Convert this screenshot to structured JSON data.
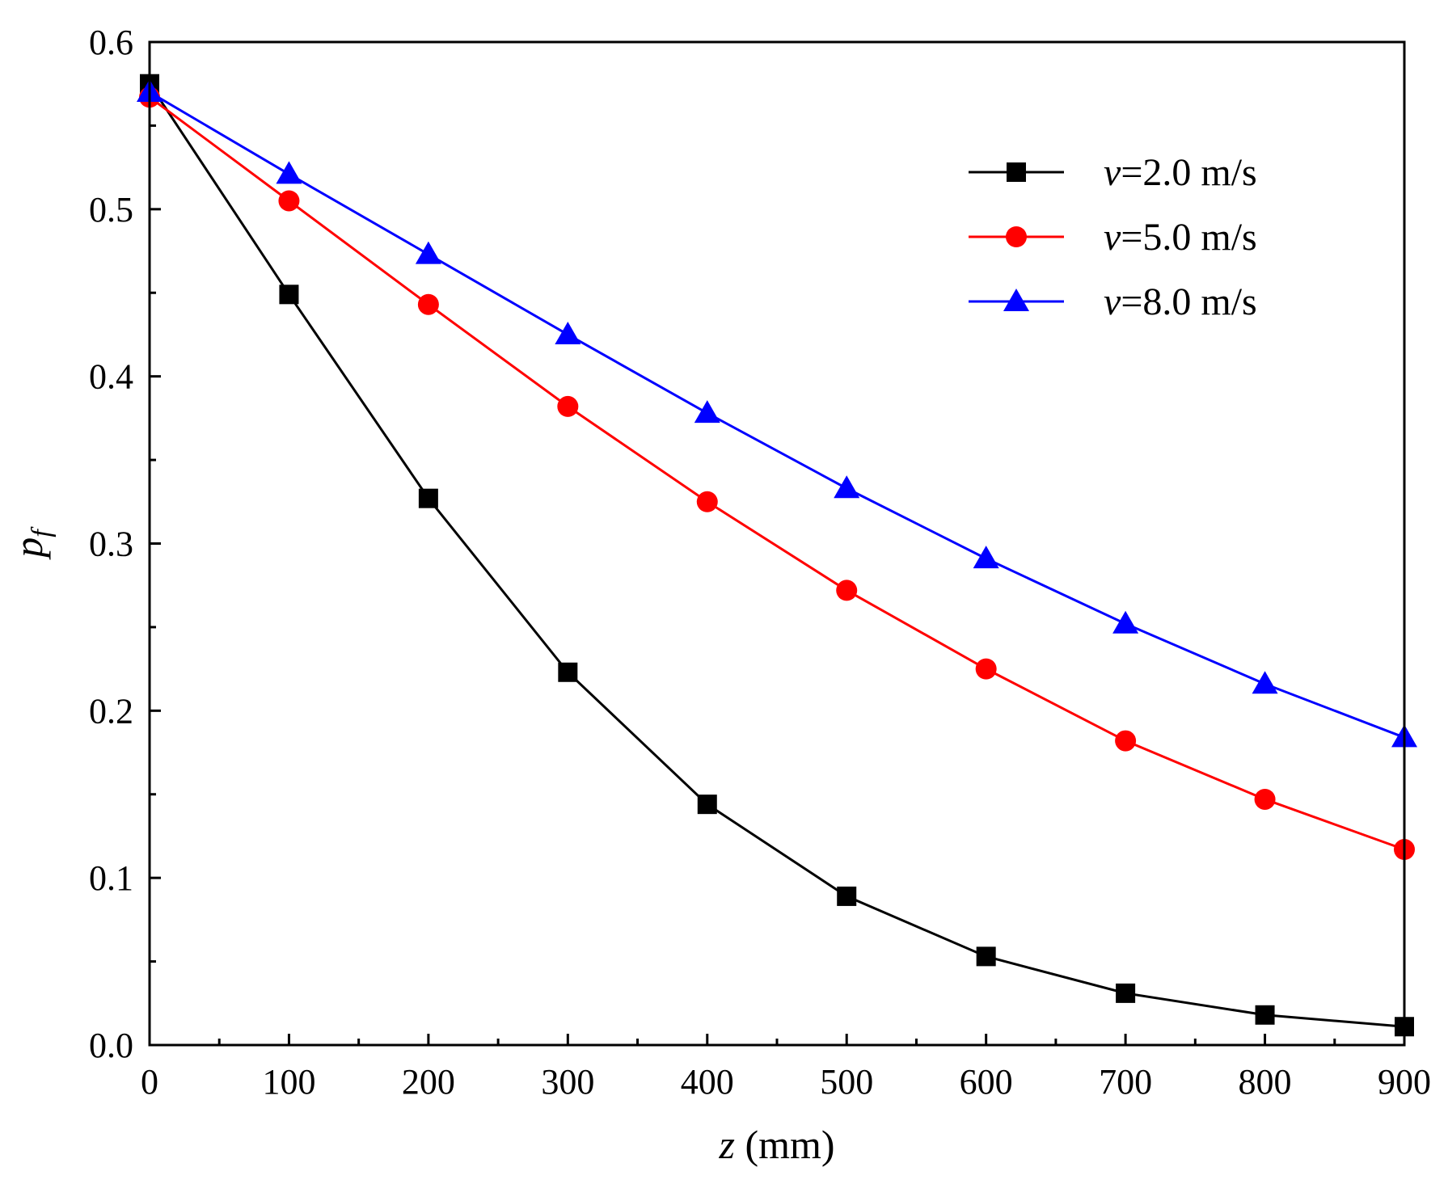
{
  "chart_data": {
    "type": "line",
    "title": "",
    "xlabel": {
      "var": "z",
      "unit": "(mm)"
    },
    "ylabel": {
      "var": "p",
      "sub": "f"
    },
    "xlim": [
      0,
      900
    ],
    "ylim": [
      0,
      0.6
    ],
    "x_ticks": [
      "0",
      "100",
      "200",
      "300",
      "400",
      "500",
      "600",
      "700",
      "800",
      "900"
    ],
    "y_ticks": [
      "0.0",
      "0.1",
      "0.2",
      "0.3",
      "0.4",
      "0.5",
      "0.6"
    ],
    "grid": false,
    "legend_position": "top-right",
    "x": [
      0,
      100,
      200,
      300,
      400,
      500,
      600,
      700,
      800,
      900
    ],
    "series": [
      {
        "name": "v=2.0 m/s",
        "var": "v",
        "rest": "=2.0 m/s",
        "color": "#000000",
        "marker": "square",
        "values": [
          0.575,
          0.449,
          0.327,
          0.223,
          0.144,
          0.089,
          0.053,
          0.031,
          0.018,
          0.011
        ]
      },
      {
        "name": "v=5.0 m/s",
        "var": "v",
        "rest": "=5.0 m/s",
        "color": "#ff0000",
        "marker": "circle",
        "values": [
          0.567,
          0.505,
          0.443,
          0.382,
          0.325,
          0.272,
          0.225,
          0.182,
          0.147,
          0.117
        ]
      },
      {
        "name": "v=8.0 m/s",
        "var": "v",
        "rest": "=8.0 m/s",
        "color": "#0000ff",
        "marker": "triangle",
        "values": [
          0.57,
          0.521,
          0.473,
          0.425,
          0.378,
          0.333,
          0.291,
          0.252,
          0.216,
          0.184
        ]
      }
    ]
  }
}
